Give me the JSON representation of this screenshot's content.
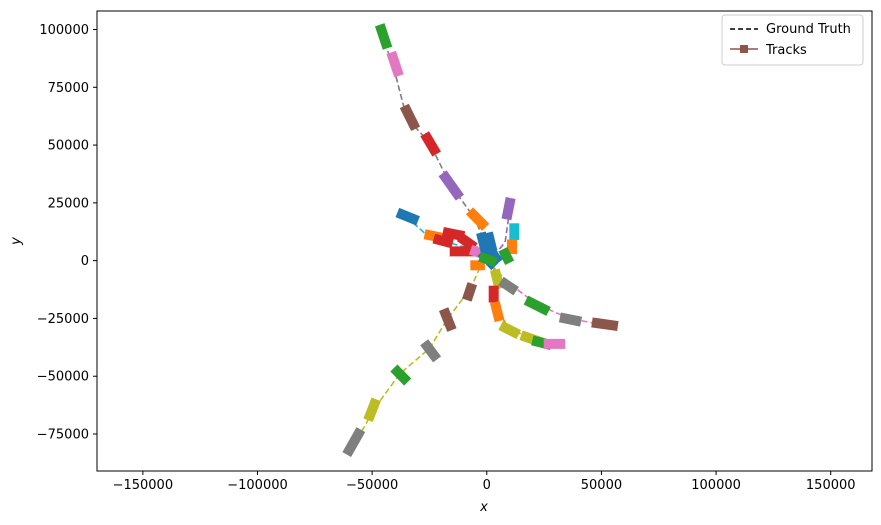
{
  "chart_data": {
    "type": "line",
    "title": "",
    "xlabel": "x",
    "ylabel": "y",
    "xlim": [
      -170000,
      168000
    ],
    "ylim": [
      -91000,
      108000
    ],
    "xticks": [
      -150000,
      -100000,
      -50000,
      0,
      50000,
      100000,
      150000
    ],
    "yticks": [
      -75000,
      -50000,
      -25000,
      0,
      25000,
      50000,
      75000,
      100000
    ],
    "grid": false,
    "legend": {
      "placement": "upper right",
      "entries": [
        {
          "label": "Ground Truth",
          "style": "dashed",
          "color": "#000000"
        },
        {
          "label": "Tracks",
          "style": "solid-square-marker",
          "color": "#8c564b"
        }
      ]
    },
    "ground_truth": [
      {
        "color": "#7f7f7f",
        "points": [
          [
            -46000,
            98000
          ],
          [
            -41000,
            85000
          ],
          [
            -35000,
            62000
          ],
          [
            -25000,
            51000
          ],
          [
            -16000,
            33000
          ],
          [
            -5000,
            18000
          ],
          [
            0,
            5000
          ]
        ]
      },
      {
        "color": "#17becf",
        "points": [
          [
            -35000,
            19000
          ],
          [
            -25000,
            10000
          ],
          [
            -10000,
            6000
          ],
          [
            0,
            2000
          ]
        ]
      },
      {
        "color": "#e377c2",
        "points": [
          [
            2000,
            -2000
          ],
          [
            10000,
            -10000
          ],
          [
            22000,
            -19000
          ],
          [
            36000,
            -25000
          ],
          [
            52000,
            -28000
          ]
        ]
      },
      {
        "color": "#bcbd22",
        "points": [
          [
            -3000,
            -3000
          ],
          [
            -7000,
            -12000
          ],
          [
            -17000,
            -25000
          ],
          [
            -25000,
            -38000
          ],
          [
            -38000,
            -49000
          ],
          [
            -49000,
            -64000
          ],
          [
            -58000,
            -80000
          ]
        ]
      },
      {
        "color": "#ff7f0e",
        "points": [
          [
            3000,
            -3000
          ],
          [
            4000,
            -20000
          ],
          [
            10000,
            -30000
          ],
          [
            22000,
            -34000
          ],
          [
            30000,
            -35500
          ]
        ]
      },
      {
        "color": "#9467bd",
        "points": [
          [
            3000,
            2000
          ],
          [
            8000,
            8000
          ],
          [
            10000,
            22000
          ]
        ]
      },
      {
        "color": "#bcbd22",
        "points": [
          [
            0,
            0
          ],
          [
            5000,
            -6000
          ]
        ]
      }
    ],
    "tracks": [
      {
        "color": "#2ca02c",
        "points": [
          [
            -46000,
            100000
          ],
          [
            -44000,
            94000
          ]
        ]
      },
      {
        "color": "#e377c2",
        "points": [
          [
            -41000,
            88000
          ],
          [
            -39000,
            82000
          ]
        ]
      },
      {
        "color": "#8c564b",
        "points": [
          [
            -35000,
            65000
          ],
          [
            -32000,
            59000
          ]
        ]
      },
      {
        "color": "#d62728",
        "points": [
          [
            -26000,
            53000
          ],
          [
            -23000,
            48000
          ]
        ]
      },
      {
        "color": "#9467bd",
        "points": [
          [
            -18000,
            36000
          ],
          [
            -13000,
            29000
          ]
        ]
      },
      {
        "color": "#ff7f0e",
        "points": [
          [
            -6000,
            20000
          ],
          [
            -2000,
            16000
          ]
        ]
      },
      {
        "color": "#1f77b4",
        "points": [
          [
            -37000,
            20000
          ],
          [
            -32000,
            18000
          ]
        ]
      },
      {
        "color": "#ff7f0e",
        "points": [
          [
            -25000,
            11000
          ],
          [
            -20000,
            10000
          ]
        ]
      },
      {
        "color": "#d62728",
        "points": [
          [
            -21000,
            9000
          ],
          [
            -17000,
            8000
          ]
        ]
      },
      {
        "color": "#d62728",
        "points": [
          [
            -17000,
            12000
          ],
          [
            -12000,
            11000
          ]
        ]
      },
      {
        "color": "#d62728",
        "points": [
          [
            -10000,
            9000
          ],
          [
            -7000,
            7000
          ]
        ]
      },
      {
        "color": "#d62728",
        "points": [
          [
            -14000,
            4000
          ],
          [
            -6000,
            4000
          ]
        ]
      },
      {
        "color": "#e377c2",
        "points": [
          [
            -5000,
            4000
          ],
          [
            -2000,
            3000
          ]
        ]
      },
      {
        "color": "#ff7f0e",
        "points": [
          [
            -5000,
            -2000
          ],
          [
            -3000,
            -2000
          ]
        ]
      },
      {
        "color": "#1f77b4",
        "points": [
          [
            -2000,
            10000
          ],
          [
            -1000,
            6000
          ]
        ]
      },
      {
        "color": "#1f77b4",
        "points": [
          [
            1000,
            10000
          ],
          [
            2000,
            6000
          ]
        ]
      },
      {
        "color": "#1f77b4",
        "points": [
          [
            1000,
            5000
          ],
          [
            4000,
            1000
          ]
        ]
      },
      {
        "color": "#1f77b4",
        "points": [
          [
            -1000,
            2000
          ],
          [
            2000,
            -1000
          ]
        ]
      },
      {
        "color": "#2ca02c",
        "points": [
          [
            -1000,
            1000
          ],
          [
            2000,
            0
          ]
        ]
      },
      {
        "color": "#9467bd",
        "points": [
          [
            10000,
            25000
          ],
          [
            9000,
            20000
          ]
        ]
      },
      {
        "color": "#17becf",
        "points": [
          [
            12000,
            14000
          ],
          [
            12000,
            11000
          ]
        ]
      },
      {
        "color": "#ff7f0e",
        "points": [
          [
            11000,
            7000
          ],
          [
            11000,
            5000
          ]
        ]
      },
      {
        "color": "#2ca02c",
        "points": [
          [
            8000,
            3000
          ],
          [
            9000,
            1000
          ]
        ]
      },
      {
        "color": "#bcbd22",
        "points": [
          [
            4000,
            -6000
          ],
          [
            5000,
            -10000
          ]
        ]
      },
      {
        "color": "#7f7f7f",
        "points": [
          [
            8000,
            -10000
          ],
          [
            11000,
            -12000
          ]
        ]
      },
      {
        "color": "#d62728",
        "points": [
          [
            3000,
            -13000
          ],
          [
            3000,
            -16000
          ]
        ]
      },
      {
        "color": "#ff7f0e",
        "points": [
          [
            4000,
            -20000
          ],
          [
            5000,
            -24000
          ]
        ]
      },
      {
        "color": "#8c564b",
        "points": [
          [
            -7000,
            -12000
          ],
          [
            -8000,
            -15000
          ]
        ]
      },
      {
        "color": "#2ca02c",
        "points": [
          [
            19000,
            -18000
          ],
          [
            25000,
            -21000
          ]
        ]
      },
      {
        "color": "#7f7f7f",
        "points": [
          [
            34000,
            -25000
          ],
          [
            39000,
            -26000
          ]
        ]
      },
      {
        "color": "#8c564b",
        "points": [
          [
            48000,
            -27000
          ],
          [
            55000,
            -28000
          ]
        ]
      },
      {
        "color": "#bcbd22",
        "points": [
          [
            8000,
            -29000
          ],
          [
            12000,
            -31000
          ]
        ]
      },
      {
        "color": "#bcbd22",
        "points": [
          [
            17000,
            -33000
          ],
          [
            23000,
            -35000
          ]
        ]
      },
      {
        "color": "#2ca02c",
        "points": [
          [
            22000,
            -35000
          ],
          [
            26000,
            -36000
          ]
        ]
      },
      {
        "color": "#e377c2",
        "points": [
          [
            27000,
            -36000
          ],
          [
            32000,
            -36000
          ]
        ]
      },
      {
        "color": "#8c564b",
        "points": [
          [
            -18000,
            -23000
          ],
          [
            -16000,
            -28000
          ]
        ]
      },
      {
        "color": "#7f7f7f",
        "points": [
          [
            -26000,
            -37000
          ],
          [
            -23000,
            -41000
          ]
        ]
      },
      {
        "color": "#2ca02c",
        "points": [
          [
            -39000,
            -48000
          ],
          [
            -36000,
            -51000
          ]
        ]
      },
      {
        "color": "#bcbd22",
        "points": [
          [
            -49000,
            -62000
          ],
          [
            -51000,
            -67000
          ]
        ]
      },
      {
        "color": "#7f7f7f",
        "points": [
          [
            -56000,
            -75000
          ],
          [
            -60000,
            -82000
          ]
        ]
      }
    ]
  }
}
